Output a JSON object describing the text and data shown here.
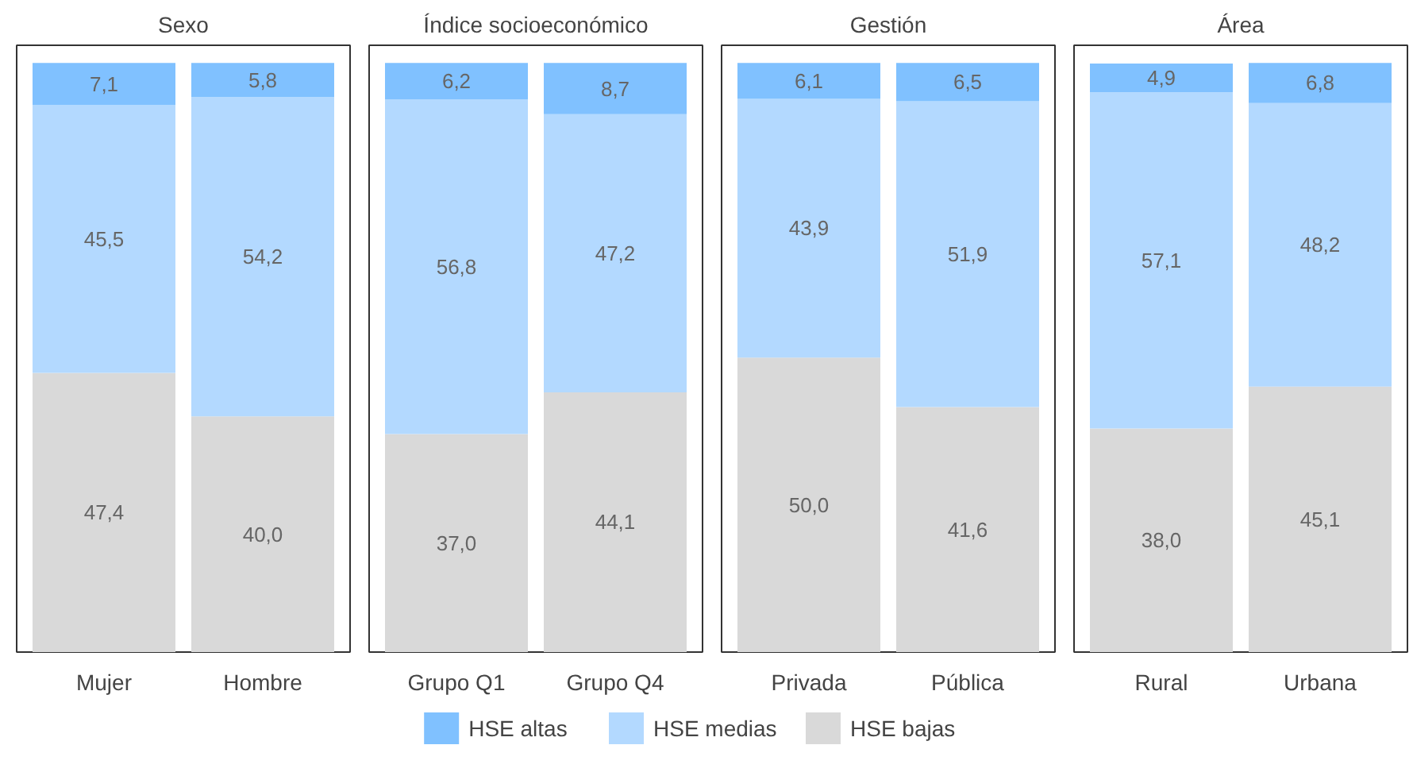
{
  "chart_data": [
    {
      "type": "bar",
      "title": "Sexo",
      "categories": [
        "Mujer",
        "Hombre"
      ],
      "stacked": true,
      "legend": "bottom",
      "grid": false,
      "series": [
        {
          "name": "HSE bajas",
          "color": "#d9d9d9",
          "values": [
            47.4,
            40.0
          ],
          "value_labels": [
            "47,4",
            "40,0"
          ]
        },
        {
          "name": "HSE medias",
          "color": "#b3d9ff",
          "values": [
            45.5,
            54.2
          ],
          "value_labels": [
            "45,5",
            "54,2"
          ]
        },
        {
          "name": "HSE altas",
          "color": "#80c1ff",
          "values": [
            7.1,
            5.8
          ],
          "value_labels": [
            "7,1",
            "5,8"
          ]
        }
      ]
    },
    {
      "type": "bar",
      "title": "Índice socioeconómico",
      "categories": [
        "Grupo Q1",
        "Grupo Q4"
      ],
      "stacked": true,
      "grid": false,
      "series": [
        {
          "color": "#d9d9d9",
          "values": [
            37.0,
            44.1
          ],
          "value_labels": [
            "37,0",
            "44,1"
          ]
        },
        {
          "color": "#b3d9ff",
          "values": [
            56.8,
            47.2
          ],
          "value_labels": [
            "56,8",
            "47,2"
          ]
        },
        {
          "color": "#80c1ff",
          "values": [
            6.2,
            8.7
          ],
          "value_labels": [
            "6,2",
            "8,7"
          ]
        }
      ]
    },
    {
      "type": "bar",
      "title": "Gestión",
      "categories": [
        "Privada",
        "Pública"
      ],
      "stacked": true,
      "grid": false,
      "series": [
        {
          "color": "#d9d9d9",
          "values": [
            50.0,
            41.6
          ],
          "value_labels": [
            "50,0",
            "41,6"
          ]
        },
        {
          "color": "#b3d9ff",
          "values": [
            43.9,
            51.9
          ],
          "value_labels": [
            "43,9",
            "51,9"
          ]
        },
        {
          "color": "#80c1ff",
          "values": [
            6.1,
            6.5
          ],
          "value_labels": [
            "6,1",
            "6,5"
          ]
        }
      ]
    },
    {
      "type": "bar",
      "title": "Área",
      "categories": [
        "Rural",
        "Urbana"
      ],
      "stacked": true,
      "grid": false,
      "series": [
        {
          "color": "#d9d9d9",
          "values": [
            38.0,
            45.1
          ],
          "value_labels": [
            "38,0",
            "45,1"
          ]
        },
        {
          "color": "#b3d9ff",
          "values": [
            57.1,
            48.2
          ],
          "value_labels": [
            "57,1",
            "48,2"
          ]
        },
        {
          "color": "#80c1ff",
          "values": [
            4.9,
            6.8
          ],
          "value_labels": [
            "4,9",
            "6,8"
          ]
        }
      ]
    }
  ]
}
